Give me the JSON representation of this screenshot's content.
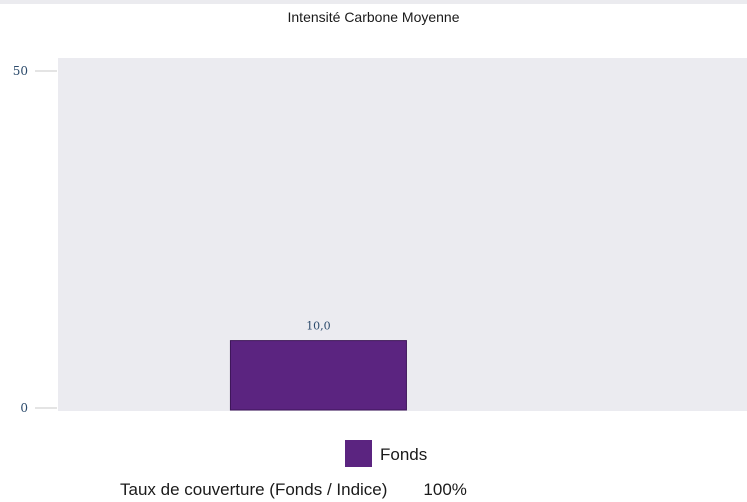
{
  "chart_data": {
    "type": "bar",
    "title": "Intensité Carbone Moyenne",
    "categories": [
      ""
    ],
    "series": [
      {
        "name": "Fonds",
        "values": [
          10.0
        ],
        "labels": [
          "10,0"
        ],
        "color": "#5b2480"
      }
    ],
    "ylim": [
      0,
      50
    ],
    "yticks": [
      0,
      50
    ],
    "ytick_labels": [
      "0",
      "50"
    ],
    "grid": false,
    "plot_background": "#ebebf0",
    "legend_position": "bottom-center"
  },
  "footer": {
    "label": "Taux de couverture (Fonds / Indice)",
    "value": "100%"
  }
}
